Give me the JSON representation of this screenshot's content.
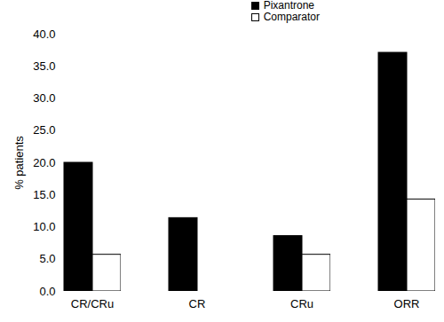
{
  "chart_data": {
    "type": "bar",
    "categories": [
      "CR/CRu",
      "CR",
      "CRu",
      "ORR"
    ],
    "series": [
      {
        "name": "Pixantrone",
        "color": "#000000",
        "values": [
          20.0,
          11.4,
          8.6,
          37.1
        ]
      },
      {
        "name": "Comparator",
        "color": "#ffffff",
        "values": [
          5.7,
          0.0,
          5.7,
          14.3
        ]
      }
    ],
    "y_label": "% patients",
    "ylim": [
      0,
      40
    ],
    "yticks": [
      {
        "value": 0,
        "label": "0.0"
      },
      {
        "value": 5,
        "label": "5.0"
      },
      {
        "value": 10,
        "label": "10.0"
      },
      {
        "value": 15,
        "label": "15.0"
      },
      {
        "value": 20,
        "label": "20.0"
      },
      {
        "value": 25,
        "label": "25.0"
      },
      {
        "value": 30,
        "label": "30.0"
      },
      {
        "value": 35,
        "label": "35.0"
      },
      {
        "value": 40,
        "label": "40.0"
      }
    ],
    "grid": false,
    "legend": "top-right"
  }
}
